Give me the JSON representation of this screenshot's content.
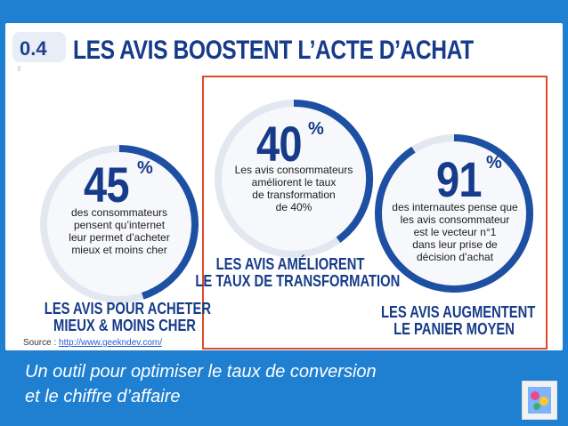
{
  "header": {
    "badge": "0.4",
    "title": "LES AVIS BOOSTENT L’ACTE D’ACHAT"
  },
  "stats": [
    {
      "value": "45",
      "unit": "%",
      "lines": "des consommateurs\npensent qu’internet\nleur permet d’acheter\nmieux et moins cher",
      "caption": "LES AVIS POUR ACHETER\nMIEUX & MOINS CHER",
      "fill_fraction": 0.45
    },
    {
      "value": "40",
      "unit": "%",
      "lines": "Les avis consommateurs\naméliorent le taux\nde transformation\nde 40%",
      "caption": "LES AVIS AMÉLIORENT\nLE TAUX DE TRANSFORMATION",
      "fill_fraction": 0.4
    },
    {
      "value": "91",
      "unit": "%",
      "lines": "des internautes pense que\nles avis consommateur\nest le vecteur n°1\ndans leur prise de\ndécision d’achat",
      "caption": "LES AVIS AUGMENTENT\nLE PANIER MOYEN",
      "fill_fraction": 0.91
    }
  ],
  "source": {
    "label": "Source : ",
    "link": "http://www.geekndev.com/"
  },
  "bottom_text": "Un outil pour optimiser le taux de conversion\net le chiffre d’affaire",
  "colors": {
    "background": "#1f7fd0",
    "accent": "#163b8a",
    "arc": "#1d4fa3",
    "highlight_border": "#e04a2a"
  },
  "icons": {
    "logo": "brand-logo-icon"
  }
}
